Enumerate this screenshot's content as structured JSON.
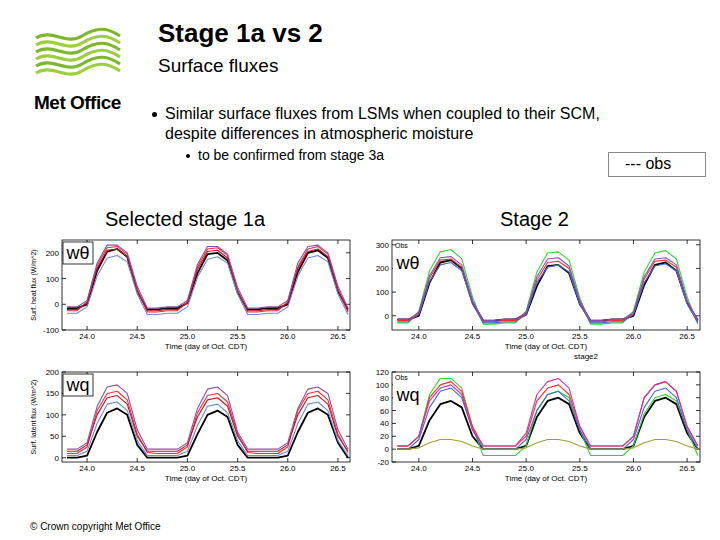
{
  "slide": {
    "logo": "Met Office",
    "title": "Stage 1a vs 2",
    "subtitle": "Surface fluxes",
    "bullet": "Similar surface fluxes from LSMs when coupled to their SCM, despite differences in atmospheric moisture",
    "sub_bullet": "to be confirmed from stage 3a",
    "obs_key": "--- obs",
    "left_heading": "Selected stage 1a",
    "right_heading": "Stage 2",
    "footer": "© Crown copyright   Met Office"
  },
  "chart_data": [
    {
      "type": "line",
      "title": "wθ",
      "x_label": "Time (day of Oct. CDT)",
      "y_label": "Surf. heat flux (W/m^2)",
      "x": [
        23.8,
        23.9,
        24.0,
        24.1,
        24.2,
        24.3,
        24.4,
        24.5,
        24.6,
        24.7,
        24.8,
        24.9,
        25.0,
        25.1,
        25.2,
        25.3,
        25.4,
        25.5,
        25.6,
        25.7,
        25.8,
        25.9,
        26.0,
        26.1,
        26.2,
        26.3,
        26.4,
        26.5,
        26.6
      ],
      "xlim": [
        23.75,
        26.62
      ],
      "xticks": [
        {
          "value": 24,
          "label": "24.0"
        },
        24.5,
        {
          "value": 25,
          "label": "25.0"
        },
        25.5,
        {
          "value": 26,
          "label": "26.0"
        },
        26.5
      ],
      "ylim": [
        -100,
        250
      ],
      "yticks": [
        -100,
        0,
        100,
        200
      ],
      "series": [
        {
          "color": "#000000",
          "values": [
            -15,
            -15,
            0,
            130,
            205,
            215,
            185,
            50,
            -20,
            -20,
            -15,
            -15,
            5,
            120,
            195,
            200,
            170,
            45,
            -20,
            -20,
            -15,
            -15,
            0,
            125,
            200,
            210,
            180,
            50,
            -20
          ]
        },
        {
          "color": "#ff2a2a",
          "values": [
            -25,
            -25,
            10,
            150,
            220,
            225,
            195,
            60,
            -30,
            -30,
            -25,
            -25,
            10,
            145,
            215,
            220,
            190,
            55,
            -30,
            -30,
            -25,
            -25,
            10,
            145,
            215,
            225,
            195,
            60,
            -30
          ]
        },
        {
          "color": "#c81020",
          "values": [
            -20,
            -20,
            5,
            140,
            210,
            215,
            185,
            50,
            -25,
            -25,
            -20,
            -20,
            5,
            135,
            205,
            210,
            180,
            50,
            -25,
            -25,
            -20,
            -20,
            5,
            140,
            205,
            215,
            185,
            55,
            -25
          ]
        },
        {
          "color": "#6a8ad8",
          "values": [
            -35,
            -35,
            -10,
            110,
            180,
            190,
            165,
            40,
            -40,
            -40,
            -35,
            -35,
            -10,
            105,
            175,
            185,
            160,
            40,
            -40,
            -40,
            -35,
            -35,
            -10,
            110,
            180,
            190,
            165,
            40,
            -40
          ]
        },
        {
          "color": "#8a4fb0",
          "values": [
            -10,
            -10,
            15,
            160,
            230,
            230,
            200,
            70,
            -15,
            -15,
            -10,
            -10,
            15,
            155,
            225,
            225,
            195,
            65,
            -15,
            -15,
            -10,
            -10,
            15,
            160,
            225,
            230,
            200,
            70,
            -15
          ]
        }
      ]
    },
    {
      "type": "line",
      "title": "wθ",
      "x_label": "Time (day of Oct. CDT)",
      "annotation": "stage2",
      "x": [
        23.8,
        23.9,
        24.0,
        24.1,
        24.2,
        24.3,
        24.4,
        24.5,
        24.6,
        24.7,
        24.8,
        24.9,
        25.0,
        25.1,
        25.2,
        25.3,
        25.4,
        25.5,
        25.6,
        25.7,
        25.8,
        25.9,
        26.0,
        26.1,
        26.2,
        26.3,
        26.4,
        26.5,
        26.6
      ],
      "xlim": [
        23.75,
        26.62
      ],
      "xticks": [
        {
          "value": 24,
          "label": "24.0"
        },
        24.5,
        {
          "value": 25,
          "label": "25.0"
        },
        25.5,
        {
          "value": 26,
          "label": "26.0"
        },
        26.5
      ],
      "ylim": [
        -60,
        320
      ],
      "yticks": [
        0,
        100,
        200,
        300
      ],
      "series": [
        {
          "name": "Obs",
          "color": "#000000",
          "values": [
            -15,
            -15,
            0,
            140,
            225,
            235,
            200,
            55,
            -20,
            -20,
            -15,
            -15,
            5,
            125,
            210,
            215,
            180,
            50,
            -20,
            -20,
            -15,
            -15,
            0,
            130,
            215,
            225,
            190,
            55,
            -20
          ]
        },
        {
          "color": "#2fd52f",
          "values": [
            -30,
            -30,
            20,
            190,
            270,
            280,
            240,
            80,
            -35,
            -35,
            -30,
            -30,
            20,
            185,
            265,
            270,
            235,
            75,
            -35,
            -35,
            -30,
            -30,
            20,
            185,
            265,
            275,
            240,
            80,
            -35
          ]
        },
        {
          "color": "#ff2a2a",
          "values": [
            -20,
            -20,
            10,
            160,
            235,
            240,
            205,
            60,
            -25,
            -25,
            -20,
            -20,
            10,
            150,
            225,
            230,
            200,
            55,
            -25,
            -25,
            -20,
            -20,
            10,
            155,
            230,
            235,
            205,
            60,
            -25
          ]
        },
        {
          "color": "#3a6ad8",
          "values": [
            -25,
            -25,
            5,
            145,
            215,
            225,
            190,
            50,
            -30,
            -30,
            -25,
            -25,
            5,
            140,
            205,
            215,
            185,
            50,
            -30,
            -30,
            -25,
            -25,
            5,
            140,
            210,
            220,
            190,
            50,
            -30
          ]
        },
        {
          "color": "#8a4fb0",
          "values": [
            -15,
            -15,
            15,
            170,
            245,
            250,
            215,
            65,
            -20,
            -20,
            -15,
            -15,
            15,
            165,
            240,
            245,
            210,
            65,
            -20,
            -20,
            -15,
            -15,
            15,
            165,
            240,
            245,
            215,
            65,
            -20
          ]
        }
      ]
    },
    {
      "type": "line",
      "title": "wq",
      "x_label": "Time (day of Oct. CDT)",
      "y_label": "Surf. latent flux (W/m^2)",
      "x": [
        23.8,
        23.9,
        24.0,
        24.1,
        24.2,
        24.3,
        24.4,
        24.5,
        24.6,
        24.7,
        24.8,
        24.9,
        25.0,
        25.1,
        25.2,
        25.3,
        25.4,
        25.5,
        25.6,
        25.7,
        25.8,
        25.9,
        26.0,
        26.1,
        26.2,
        26.3,
        26.4,
        26.5,
        26.6
      ],
      "xlim": [
        23.75,
        26.62
      ],
      "xticks": [
        {
          "value": 24,
          "label": "24.0"
        },
        24.5,
        {
          "value": 25,
          "label": "25.0"
        },
        25.5,
        {
          "value": 26,
          "label": "26.0"
        },
        26.5
      ],
      "ylim": [
        -10,
        200
      ],
      "yticks": [
        0,
        50,
        100,
        150,
        200
      ],
      "series": [
        {
          "color": "#000000",
          "values": [
            0,
            0,
            5,
            60,
            105,
            115,
            100,
            30,
            0,
            0,
            0,
            0,
            5,
            55,
            100,
            110,
            95,
            30,
            0,
            0,
            0,
            0,
            5,
            60,
            105,
            115,
            100,
            35,
            0
          ]
        },
        {
          "color": "#ff2a2a",
          "values": [
            10,
            10,
            25,
            110,
            150,
            155,
            135,
            55,
            12,
            10,
            10,
            10,
            25,
            105,
            145,
            150,
            130,
            55,
            12,
            10,
            10,
            10,
            25,
            110,
            150,
            155,
            135,
            55,
            12
          ]
        },
        {
          "color": "#c81020",
          "values": [
            15,
            15,
            30,
            100,
            140,
            145,
            125,
            50,
            15,
            15,
            15,
            15,
            30,
            95,
            135,
            140,
            120,
            50,
            15,
            15,
            15,
            15,
            30,
            100,
            140,
            145,
            125,
            50,
            15
          ]
        },
        {
          "color": "#6a8ad8",
          "values": [
            5,
            5,
            15,
            80,
            125,
            130,
            110,
            40,
            5,
            5,
            5,
            5,
            15,
            75,
            120,
            125,
            105,
            40,
            5,
            5,
            5,
            5,
            15,
            80,
            125,
            130,
            110,
            40,
            5
          ]
        },
        {
          "color": "#8a4fb0",
          "values": [
            20,
            20,
            35,
            120,
            165,
            170,
            150,
            65,
            20,
            20,
            20,
            20,
            35,
            115,
            160,
            165,
            145,
            60,
            20,
            20,
            20,
            20,
            35,
            115,
            160,
            165,
            150,
            65,
            20
          ]
        }
      ]
    },
    {
      "type": "line",
      "title": "wq",
      "x_label": "Time (day of Oct. CDT)",
      "x": [
        23.8,
        23.9,
        24.0,
        24.1,
        24.2,
        24.3,
        24.4,
        24.5,
        24.6,
        24.7,
        24.8,
        24.9,
        25.0,
        25.1,
        25.2,
        25.3,
        25.4,
        25.5,
        25.6,
        25.7,
        25.8,
        25.9,
        26.0,
        26.1,
        26.2,
        26.3,
        26.4,
        26.5,
        26.6
      ],
      "xlim": [
        23.75,
        26.62
      ],
      "xticks": [
        {
          "value": 24,
          "label": "24.0"
        },
        24.5,
        {
          "value": 25,
          "label": "25.0"
        },
        25.5,
        {
          "value": 26,
          "label": "26.0"
        },
        26.5
      ],
      "ylim": [
        -20,
        120
      ],
      "yticks": [
        -20,
        0,
        20,
        40,
        60,
        80,
        100,
        120
      ],
      "series": [
        {
          "name": "Obs",
          "color": "#000000",
          "values": [
            0,
            0,
            5,
            45,
            70,
            75,
            65,
            20,
            0,
            0,
            0,
            0,
            5,
            50,
            75,
            80,
            70,
            25,
            0,
            0,
            0,
            0,
            5,
            50,
            75,
            80,
            70,
            25,
            0
          ]
        },
        {
          "color": "#2fd52f",
          "values": [
            5,
            5,
            20,
            85,
            110,
            110,
            95,
            35,
            -10,
            -10,
            -10,
            -10,
            5,
            60,
            85,
            90,
            80,
            30,
            -10,
            -10,
            -10,
            -10,
            5,
            55,
            80,
            85,
            75,
            30,
            -10
          ]
        },
        {
          "color": "#ff2a2a",
          "values": [
            5,
            5,
            20,
            80,
            100,
            105,
            90,
            35,
            5,
            5,
            5,
            5,
            20,
            75,
            95,
            100,
            85,
            35,
            5,
            5,
            5,
            5,
            20,
            80,
            100,
            105,
            90,
            35,
            5
          ]
        },
        {
          "color": "#3a6ad8",
          "values": [
            0,
            0,
            15,
            65,
            90,
            95,
            80,
            30,
            0,
            0,
            0,
            0,
            15,
            60,
            85,
            90,
            75,
            30,
            0,
            0,
            0,
            0,
            15,
            65,
            90,
            95,
            80,
            30,
            0
          ]
        },
        {
          "color": "#d02fb0",
          "values": [
            5,
            5,
            20,
            75,
            95,
            100,
            85,
            30,
            5,
            5,
            5,
            5,
            25,
            85,
            105,
            110,
            95,
            35,
            5,
            5,
            5,
            5,
            20,
            80,
            100,
            105,
            90,
            35,
            5
          ]
        },
        {
          "color": "#a0a030",
          "values": [
            0,
            0,
            2,
            10,
            15,
            15,
            12,
            5,
            0,
            0,
            0,
            0,
            2,
            10,
            15,
            15,
            12,
            5,
            0,
            0,
            0,
            0,
            2,
            10,
            15,
            15,
            12,
            5,
            0
          ]
        }
      ]
    }
  ]
}
